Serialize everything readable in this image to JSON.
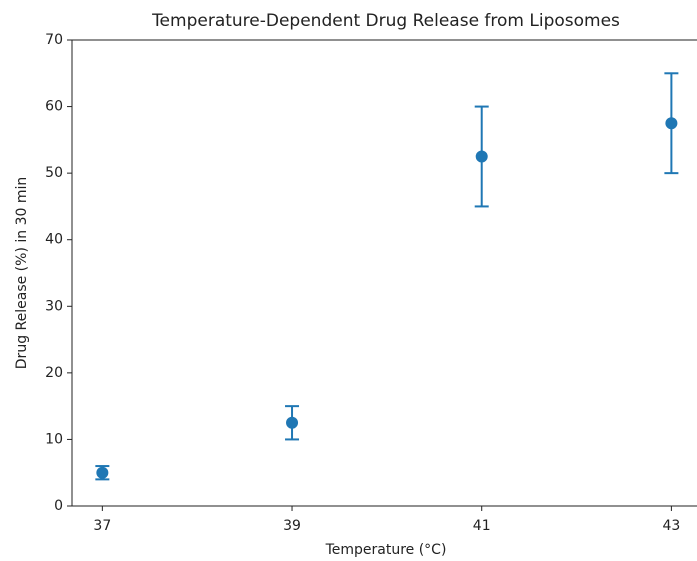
{
  "chart_data": {
    "type": "errorbar",
    "title": "Temperature-Dependent Drug Release from Liposomes",
    "x_label": "Temperature (°C)",
    "y_label": "Drug Release (%) in 30 min",
    "x": [
      37,
      39,
      41,
      43
    ],
    "values": [
      5,
      12.5,
      52.5,
      57.5
    ],
    "errors": [
      1,
      2.5,
      7.5,
      7.5
    ],
    "color": "#1f77b4",
    "xlim": [
      36.68,
      43.27
    ],
    "ylim": [
      0,
      70
    ],
    "xticks": [
      37,
      39,
      41,
      43
    ],
    "yticks": [
      0,
      10,
      20,
      30,
      40,
      50,
      60,
      70
    ],
    "grid": false
  }
}
